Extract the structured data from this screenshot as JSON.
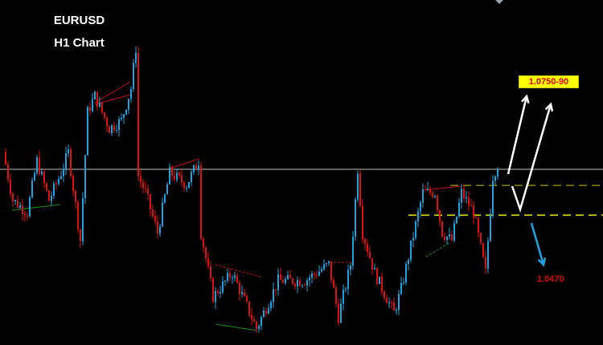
{
  "header": {
    "symbol": "EURUSD",
    "timeframe": "H1 Chart"
  },
  "annotations": {
    "upside_target": "1.0750-90",
    "downside_target": "1.0470"
  },
  "colors": {
    "background": "#000000",
    "bull_candle": "#1fa3e0",
    "bear_candle": "#e01010",
    "resistance_line": "#808080",
    "dashed_level_upper": "#8a8a10",
    "dashed_level_lower": "#e6e600",
    "target_box": "#ffff00",
    "target_text": "#e00000",
    "up_arrow": "#ffffff",
    "down_arrow": "#1fa3e0"
  },
  "chart_data": {
    "type": "candlestick",
    "title": "EURUSD H1 Chart",
    "grid": false,
    "price_waypoints": [
      [
        1,
        1.065
      ],
      [
        5,
        1.0582
      ],
      [
        11,
        1.0565
      ],
      [
        15,
        1.0638
      ],
      [
        20,
        1.0582
      ],
      [
        25,
        1.0621
      ],
      [
        28,
        1.065
      ],
      [
        33,
        1.0525
      ],
      [
        36,
        1.0707
      ],
      [
        39,
        1.073
      ],
      [
        45,
        1.0684
      ],
      [
        50,
        1.0695
      ],
      [
        54,
        1.0741
      ],
      [
        56,
        1.0798
      ],
      [
        57,
        1.0616
      ],
      [
        60,
        1.0593
      ],
      [
        65,
        1.0536
      ],
      [
        70,
        1.0621
      ],
      [
        77,
        1.0604
      ],
      [
        82,
        1.0638
      ],
      [
        83,
        1.0536
      ],
      [
        88,
        1.0445
      ],
      [
        96,
        1.0479
      ],
      [
        106,
        1.04
      ],
      [
        115,
        1.0468
      ],
      [
        126,
        1.0468
      ],
      [
        136,
        1.0491
      ],
      [
        140,
        1.0417
      ],
      [
        145,
        1.0491
      ],
      [
        148,
        1.0627
      ],
      [
        150,
        1.0536
      ],
      [
        155,
        1.0479
      ],
      [
        163,
        1.0422
      ],
      [
        166,
        1.0456
      ],
      [
        175,
        1.0593
      ],
      [
        180,
        1.0593
      ],
      [
        183,
        1.0536
      ],
      [
        187,
        1.0525
      ],
      [
        191,
        1.0593
      ],
      [
        196,
        1.0565
      ],
      [
        201,
        1.0479
      ],
      [
        204,
        1.0616
      ],
      [
        206,
        1.0633
      ]
    ],
    "levels": {
      "resistance": 1.0626,
      "dashed_upper": 1.0603,
      "dashed_lower": 1.0561
    },
    "targets": {
      "up": "1.0750-90",
      "down": 1.047
    }
  }
}
